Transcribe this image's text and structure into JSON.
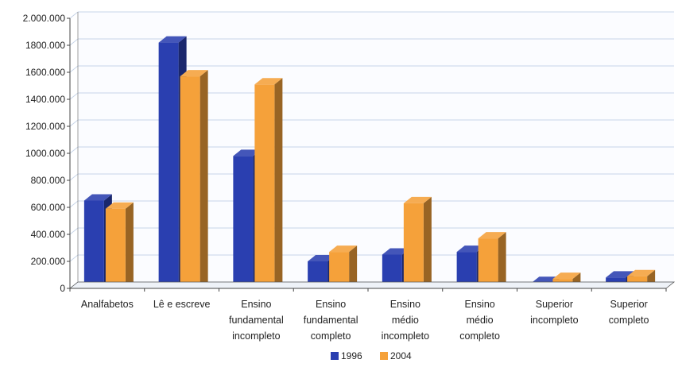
{
  "chart_data": {
    "type": "bar",
    "categories": [
      [
        "Analfabetos"
      ],
      [
        "Lê e escreve"
      ],
      [
        "Ensino",
        "fundamental",
        "incompleto"
      ],
      [
        "Ensino",
        "fundamental",
        "completo"
      ],
      [
        "Ensino",
        "médio",
        "incompleto"
      ],
      [
        "Ensino",
        "médio",
        "completo"
      ],
      [
        "Superior",
        "incompleto"
      ],
      [
        "Superior",
        "completo"
      ]
    ],
    "series": [
      {
        "name": "1996",
        "color": "#2a3fb0",
        "values": [
          650000,
          1820000,
          980000,
          200000,
          250000,
          270000,
          40000,
          80000
        ]
      },
      {
        "name": "2004",
        "color": "#f5a13a",
        "values": [
          590000,
          1570000,
          1510000,
          270000,
          630000,
          370000,
          70000,
          90000
        ]
      }
    ],
    "yticks": [
      "0",
      "200.000",
      "400.000",
      "600.000",
      "800.000",
      "1000.000",
      "1200.000",
      "1400.000",
      "1600.000",
      "1800.000",
      "2.000.000"
    ],
    "ylim": [
      0,
      2000000
    ],
    "grid": true,
    "legend_position": "bottom-center",
    "rendering": "3d-bars"
  }
}
